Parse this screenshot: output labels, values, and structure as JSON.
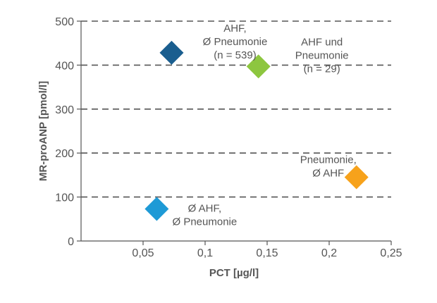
{
  "chart_data": {
    "type": "scatter",
    "xlabel": "PCT [µg/l]",
    "ylabel": "MR-proANP [pmol/l]",
    "xlim": [
      0,
      0.25
    ],
    "ylim": [
      0,
      500
    ],
    "x_ticks": [
      {
        "value": 0.05,
        "label": "0,05"
      },
      {
        "value": 0.1,
        "label": "0,1"
      },
      {
        "value": 0.15,
        "label": "0,15"
      },
      {
        "value": 0.2,
        "label": "0,2"
      },
      {
        "value": 0.25,
        "label": "0,25"
      }
    ],
    "y_ticks": [
      {
        "value": 0,
        "label": "0"
      },
      {
        "value": 100,
        "label": "100"
      },
      {
        "value": 200,
        "label": "200"
      },
      {
        "value": 300,
        "label": "300"
      },
      {
        "value": 400,
        "label": "400"
      },
      {
        "value": 500,
        "label": "500"
      }
    ],
    "grid": "horizontal dashed",
    "marker": "diamond",
    "points": [
      {
        "x": 0.073,
        "y": 428,
        "color": "#1a5e8f",
        "label_lines": [
          "AHF,",
          "Ø Pneumonie",
          "(n = 539)"
        ],
        "label_position": "upper-right"
      },
      {
        "x": 0.143,
        "y": 397,
        "color": "#8dc63f",
        "label_lines": [
          "AHF und",
          "Pneumonie",
          "(n = 29)"
        ],
        "label_position": "upper-right"
      },
      {
        "x": 0.222,
        "y": 145,
        "color": "#f7a21b",
        "label_lines": [
          "Pneumonie,",
          "Ø AHF"
        ],
        "label_position": "upper-left"
      },
      {
        "x": 0.061,
        "y": 73,
        "color": "#1e9ad6",
        "label_lines": [
          "Ø AHF,",
          "Ø Pneumonie"
        ],
        "label_position": "lower-right"
      }
    ]
  }
}
